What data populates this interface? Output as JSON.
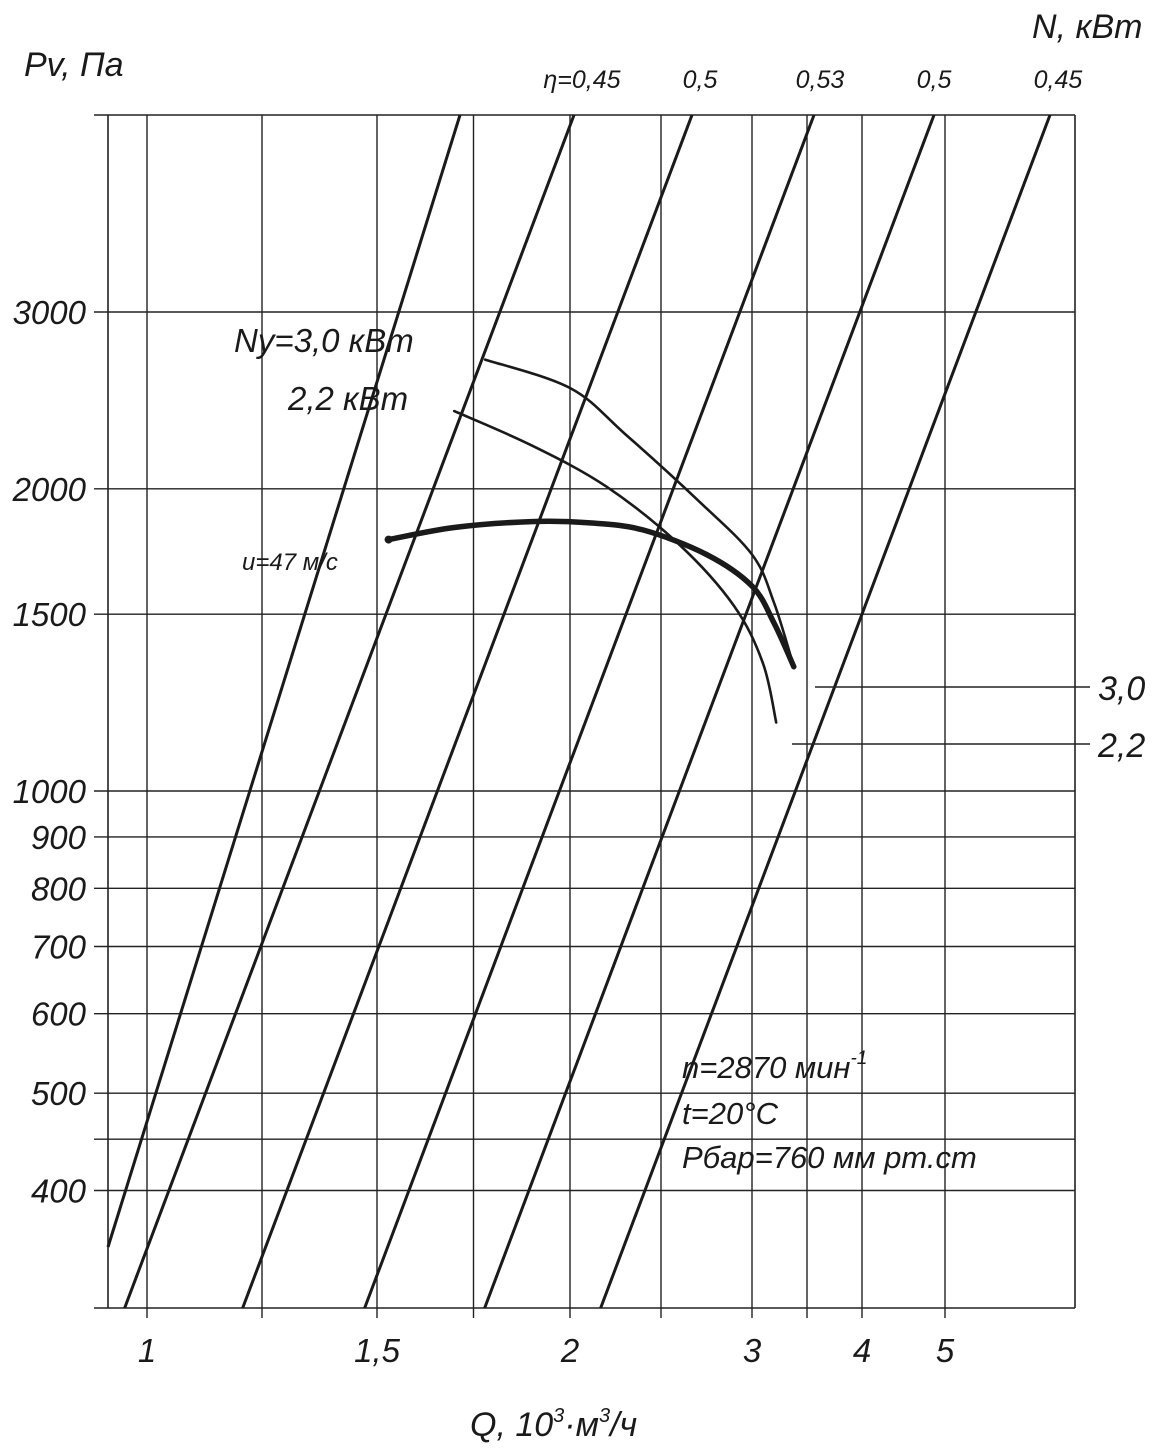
{
  "chart_data": {
    "type": "line",
    "y_title": "Pv, Па",
    "n_title": "N, кВт",
    "x_title_main": "Q, 10",
    "x_title_sup": "3",
    "x_title_mid": "·м",
    "x_title_sup2": "3",
    "x_title_end": "/ч",
    "y_scale": "log",
    "ylim": [
      390,
      4200
    ],
    "x_ticks": [
      {
        "label": "1",
        "value": 1.0
      },
      {
        "label": "1,5",
        "value": 1.5
      },
      {
        "label": "2",
        "value": 2.0
      },
      {
        "label": "3",
        "value": 3.0
      },
      {
        "label": "4",
        "value": 4.0
      },
      {
        "label": "5",
        "value": 5.0
      }
    ],
    "y_ticks": [
      {
        "label": "3000",
        "value": 3000
      },
      {
        "label": "2000",
        "value": 2000
      },
      {
        "label": "1500",
        "value": 1500
      },
      {
        "label": "1000",
        "value": 1000
      },
      {
        "label": "900",
        "value": 900
      },
      {
        "label": "800",
        "value": 800
      },
      {
        "label": "700",
        "value": 700
      },
      {
        "label": "600",
        "value": 600
      },
      {
        "label": "500",
        "value": 500
      },
      {
        "label": "400",
        "value": 400
      }
    ],
    "efficiency_labels": [
      "η=0,45",
      "0,5",
      "0,53",
      "0,5",
      "0,45"
    ],
    "power_labels": [
      "3,0",
      "2,2"
    ],
    "curve_labels": {
      "main": "u=47 м/с",
      "power_30": "Ny=3,0 кВт",
      "power_22": "2,2 кВт"
    },
    "notes": {
      "speed_prefix": "n=2870 мин",
      "speed_sup": "-1",
      "temp": "t=20°C",
      "pressure": "Pбар=760 мм рт.ст"
    },
    "series": [
      {
        "name": "u=47 м/с",
        "x": [
          1.53,
          1.7,
          1.9,
          2.1,
          2.4,
          2.75,
          3.0,
          3.2,
          3.38
        ],
        "y": [
          1780,
          1830,
          1855,
          1850,
          1820,
          1720,
          1600,
          1470,
          1330
        ]
      },
      {
        "name": "Ny=3,0 кВт",
        "x": [
          1.78,
          2.0,
          2.3,
          2.7,
          3.0,
          3.2,
          3.38
        ],
        "y": [
          2690,
          2520,
          2270,
          1950,
          1720,
          1540,
          1330
        ]
      },
      {
        "name": "2,2 кВт",
        "x": [
          1.7,
          1.9,
          2.2,
          2.6,
          2.9,
          3.1,
          3.22
        ],
        "y": [
          2390,
          2210,
          2010,
          1760,
          1530,
          1340,
          1170
        ]
      }
    ]
  }
}
